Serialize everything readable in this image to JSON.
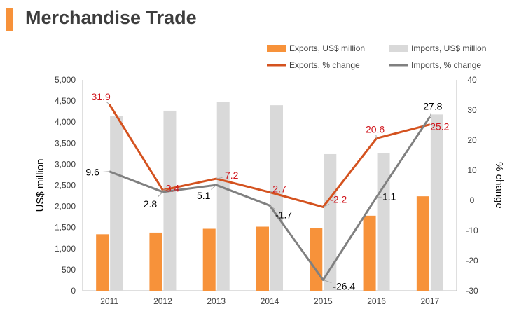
{
  "page": {
    "title": "Merchandise Trade"
  },
  "chart_data": {
    "type": "bar",
    "categories": [
      "2011",
      "2012",
      "2013",
      "2014",
      "2015",
      "2016",
      "2017"
    ],
    "series": [
      {
        "name": "Exports, US$ million",
        "kind": "bar",
        "axis": "left",
        "color": "#f7923a",
        "values": [
          1340,
          1380,
          1470,
          1520,
          1490,
          1780,
          2240
        ]
      },
      {
        "name": "Imports, US$ million",
        "kind": "bar",
        "axis": "left",
        "color": "#d9d9d9",
        "values": [
          4150,
          4270,
          4480,
          4400,
          3240,
          3270,
          4180
        ]
      },
      {
        "name": "Exports, % change",
        "kind": "line",
        "axis": "right",
        "color": "#d4521f",
        "values": [
          31.9,
          3.4,
          7.2,
          2.7,
          -2.2,
          20.6,
          25.2
        ],
        "labels": [
          "31.9",
          "3.4",
          "7.2",
          "2.7",
          "-2.2",
          "20.6",
          "25.2"
        ],
        "label_color": "#d0161d"
      },
      {
        "name": "Imports, % change",
        "kind": "line",
        "axis": "right",
        "color": "#808080",
        "values": [
          9.6,
          2.8,
          5.1,
          -1.7,
          -26.4,
          1.1,
          27.8
        ],
        "labels": [
          "9.6",
          "2.8",
          "5.1",
          "-1.7",
          "-26.4",
          "1.1",
          "27.8"
        ],
        "label_color": "#000000"
      }
    ],
    "ylabel": "US$ million",
    "y2label": "% change",
    "ylim": [
      0,
      5000
    ],
    "y2lim": [
      -30,
      40
    ],
    "yticks": [
      "0",
      "500",
      "1,000",
      "1,500",
      "2,000",
      "2,500",
      "3,000",
      "3,500",
      "4,000",
      "4,500",
      "5,000"
    ],
    "y2ticks": [
      "-30",
      "-20",
      "-10",
      "0",
      "10",
      "20",
      "30",
      "40"
    ],
    "legend_position": "top-right",
    "grid": false
  }
}
